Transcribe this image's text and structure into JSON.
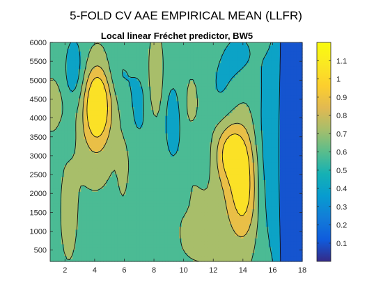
{
  "figure": {
    "suptitle": "5-FOLD CV AAE EMPIRICAL MEAN (LLFR)",
    "subtitle": "Local linear Fréchet predictor, BW5"
  },
  "chart_data": {
    "type": "heatmap",
    "title": "Local linear Fréchet predictor, BW5",
    "xlabel": "",
    "ylabel": "",
    "xlim": [
      1,
      18
    ],
    "ylim": [
      200,
      6000
    ],
    "x_ticks": [
      2,
      4,
      6,
      8,
      10,
      12,
      14,
      16,
      18
    ],
    "y_ticks": [
      500,
      1000,
      1500,
      2000,
      2500,
      3000,
      3500,
      4000,
      4500,
      5000,
      5500,
      6000
    ],
    "colorbar": {
      "range": [
        0,
        1.2
      ],
      "ticks": [
        0.1,
        0.2,
        0.3,
        0.4,
        0.5,
        0.6,
        0.7,
        0.8,
        0.9,
        1.0,
        1.1
      ],
      "tick_labels": [
        "0.1",
        "0.2",
        "0.3",
        "0.4",
        "0.5",
        "0.6",
        "0.7",
        "0.8",
        "0.9",
        "1",
        "1.1"
      ],
      "colormap": "parula"
    },
    "contour_levels": [
      0.3,
      0.5,
      0.65,
      0.8,
      0.95
    ],
    "base_level": 0.62,
    "blobs": [
      {
        "x": 4.2,
        "y": 4400,
        "sx": 0.6,
        "sy": 650,
        "amp": 0.5
      },
      {
        "x": 4.0,
        "y": 3700,
        "sx": 0.9,
        "sy": 900,
        "amp": 0.15
      },
      {
        "x": 1.1,
        "y": 4250,
        "sx": 0.5,
        "sy": 450,
        "amp": 0.2
      },
      {
        "x": 13.2,
        "y": 3100,
        "sx": 0.7,
        "sy": 500,
        "amp": 0.32
      },
      {
        "x": 14.0,
        "y": 2100,
        "sx": 0.7,
        "sy": 900,
        "amp": 0.35
      },
      {
        "x": 13.3,
        "y": 2700,
        "sx": 1.2,
        "sy": 1500,
        "amp": 0.12
      },
      {
        "x": 2.1,
        "y": 1600,
        "sx": 0.45,
        "sy": 950,
        "amp": 0.14
      },
      {
        "x": 10.5,
        "y": 1800,
        "sx": 0.6,
        "sy": 600,
        "amp": 0.12
      },
      {
        "x": 11.2,
        "y": 800,
        "sx": 0.8,
        "sy": 350,
        "amp": 0.1
      },
      {
        "x": 8.1,
        "y": 5000,
        "sx": 0.35,
        "sy": 700,
        "amp": 0.18
      },
      {
        "x": 6.0,
        "y": 2500,
        "sx": 0.3,
        "sy": 700,
        "amp": 0.1
      },
      {
        "x": 1.0,
        "y": 1800,
        "sx": 0.8,
        "sy": 1500,
        "amp": -0.1
      },
      {
        "x": 2.6,
        "y": 5300,
        "sx": 0.5,
        "sy": 700,
        "amp": -0.22
      },
      {
        "x": 9.3,
        "y": 3900,
        "sx": 0.5,
        "sy": 900,
        "amp": -0.2
      },
      {
        "x": 7.0,
        "y": 4300,
        "sx": 0.6,
        "sy": 900,
        "amp": -0.15
      },
      {
        "x": 5.7,
        "y": 5200,
        "sx": 0.6,
        "sy": 500,
        "amp": -0.12
      },
      {
        "x": 12.5,
        "y": 4700,
        "sx": 0.8,
        "sy": 800,
        "amp": -0.15
      },
      {
        "x": 11.0,
        "y": 3000,
        "sx": 0.6,
        "sy": 600,
        "amp": -0.15
      },
      {
        "x": 10.5,
        "y": 4200,
        "sx": 0.5,
        "sy": 700,
        "amp": 0.08
      },
      {
        "x": 15.5,
        "y": 3100,
        "sx": 0.55,
        "sy": 2000,
        "amp": -0.18
      },
      {
        "x": 16.4,
        "y": 3100,
        "sx": 0.45,
        "sy": 3200,
        "amp": -0.18
      },
      {
        "x": 13.8,
        "y": 5700,
        "sx": 0.9,
        "sy": 600,
        "amp": -0.15
      },
      {
        "x": 10.0,
        "y": 1900,
        "sx": 0.35,
        "sy": 300,
        "amp": -0.18
      },
      {
        "x": 7.0,
        "y": 1900,
        "sx": 0.8,
        "sy": 500,
        "amp": -0.1
      },
      {
        "x": 2.1,
        "y": 3500,
        "sx": 0.4,
        "sy": 350,
        "amp": -0.1
      },
      {
        "x": 8.7,
        "y": 1300,
        "sx": 0.5,
        "sy": 500,
        "amp": -0.1
      }
    ],
    "edge_falloff": {
      "start_x": 16.2,
      "end_x": 17.0,
      "floor": 0.03
    }
  }
}
